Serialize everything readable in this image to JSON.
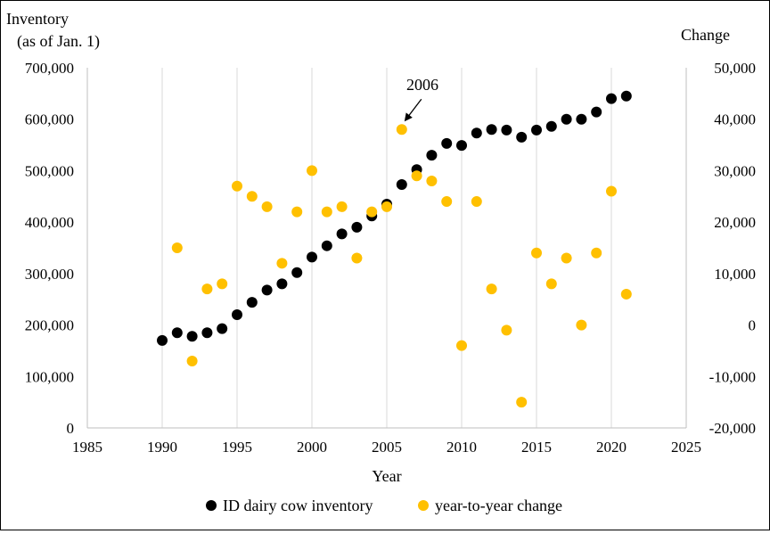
{
  "chart_data": {
    "type": "scatter",
    "title": "",
    "xlabel": "Year",
    "ylabel_left": [
      "Inventory",
      "(as of Jan. 1)"
    ],
    "ylabel_right": "Change",
    "xlim": [
      1985,
      2025
    ],
    "ylim_left": [
      0,
      700000
    ],
    "ylim_right": [
      -20000,
      50000
    ],
    "x_ticks": [
      "1985",
      "1990",
      "1995",
      "2000",
      "2005",
      "2010",
      "2015",
      "2020",
      "2025"
    ],
    "y_ticks_left": [
      "0",
      "100,000",
      "200,000",
      "300,000",
      "400,000",
      "500,000",
      "600,000",
      "700,000"
    ],
    "y_ticks_right": [
      "-20,000",
      "-10,000",
      "0",
      "10,000",
      "20,000",
      "30,000",
      "40,000",
      "50,000"
    ],
    "grid": "vertical",
    "legend_position": "bottom",
    "annotation": {
      "text": "2006",
      "x": 2006,
      "series": "year-to-year change"
    },
    "series": [
      {
        "name": "ID dairy cow inventory",
        "axis": "left",
        "color": "#000000",
        "points": [
          [
            1990,
            170000
          ],
          [
            1991,
            185000
          ],
          [
            1992,
            178000
          ],
          [
            1993,
            185000
          ],
          [
            1994,
            193000
          ],
          [
            1995,
            220000
          ],
          [
            1996,
            244000
          ],
          [
            1997,
            268000
          ],
          [
            1998,
            280000
          ],
          [
            1999,
            302000
          ],
          [
            2000,
            332000
          ],
          [
            2001,
            354000
          ],
          [
            2002,
            377000
          ],
          [
            2003,
            390000
          ],
          [
            2004,
            412000
          ],
          [
            2005,
            435000
          ],
          [
            2006,
            473000
          ],
          [
            2007,
            502000
          ],
          [
            2008,
            530000
          ],
          [
            2009,
            553000
          ],
          [
            2010,
            549000
          ],
          [
            2011,
            573000
          ],
          [
            2012,
            580000
          ],
          [
            2013,
            579000
          ],
          [
            2014,
            565000
          ],
          [
            2015,
            579000
          ],
          [
            2016,
            586000
          ],
          [
            2017,
            600000
          ],
          [
            2018,
            600000
          ],
          [
            2019,
            614000
          ],
          [
            2020,
            640000
          ],
          [
            2021,
            645000
          ]
        ]
      },
      {
        "name": "year-to-year change",
        "axis": "right",
        "color": "#FFC000",
        "points": [
          [
            1991,
            15000
          ],
          [
            1992,
            -7000
          ],
          [
            1993,
            7000
          ],
          [
            1994,
            8000
          ],
          [
            1995,
            27000
          ],
          [
            1996,
            25000
          ],
          [
            1997,
            23000
          ],
          [
            1998,
            12000
          ],
          [
            1999,
            22000
          ],
          [
            2000,
            30000
          ],
          [
            2001,
            22000
          ],
          [
            2002,
            23000
          ],
          [
            2003,
            13000
          ],
          [
            2004,
            22000
          ],
          [
            2005,
            23000
          ],
          [
            2006,
            38000
          ],
          [
            2007,
            29000
          ],
          [
            2008,
            28000
          ],
          [
            2009,
            24000
          ],
          [
            2010,
            -4000
          ],
          [
            2011,
            24000
          ],
          [
            2012,
            7000
          ],
          [
            2013,
            -1000
          ],
          [
            2014,
            -15000
          ],
          [
            2015,
            14000
          ],
          [
            2016,
            8000
          ],
          [
            2017,
            13000
          ],
          [
            2018,
            0
          ],
          [
            2019,
            14000
          ],
          [
            2020,
            26000
          ],
          [
            2021,
            6000
          ]
        ]
      }
    ]
  }
}
